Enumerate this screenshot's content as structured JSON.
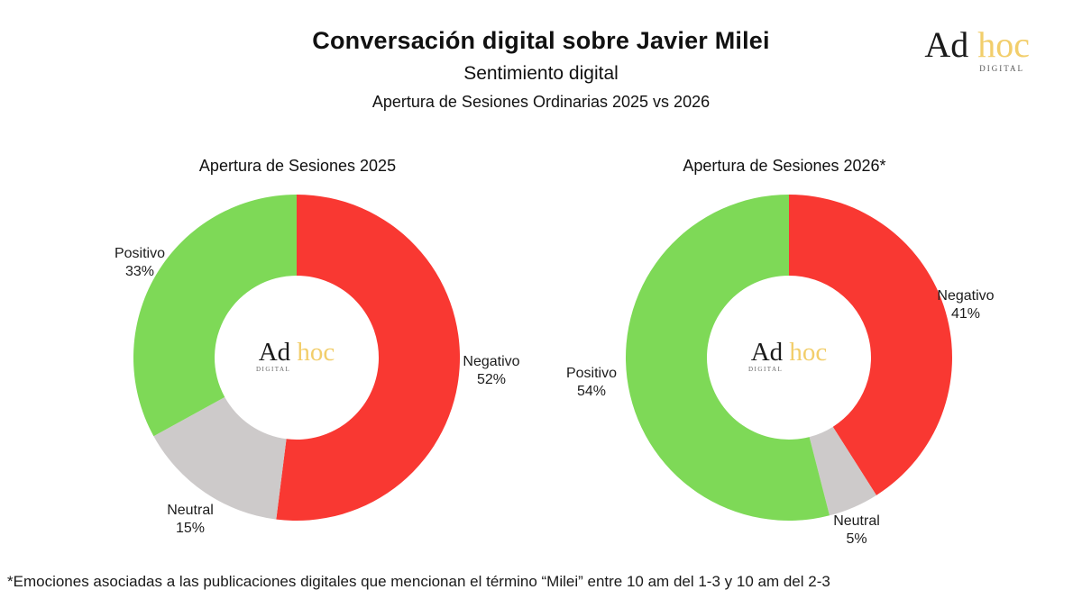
{
  "header": {
    "title": "Conversación digital sobre Javier Milei",
    "subtitle": "Sentimiento digital",
    "subsubtitle": "Apertura de Sesiones Ordinarias 2025 vs 2026"
  },
  "logo": {
    "name_primary": "Ad",
    "name_accent": "hoc",
    "tagline": "DIGITAL"
  },
  "colors": {
    "positive_green": "#7ED957",
    "negative_red": "#F93832",
    "neutral_gray": "#CDCACA",
    "logo_gold": "#F2CE6B"
  },
  "footnote": "*Emociones asociadas a las publicaciones digitales que mencionan el término “Milei” entre 10 am del 1-3 y 10 am del 2-3",
  "chart_data": [
    {
      "type": "pie",
      "donut": true,
      "title": "Apertura de Sesiones 2025",
      "start_angle_deg": 0,
      "direction": "clockwise",
      "slices": [
        {
          "label": "Negativo",
          "value": 52,
          "pct_label": "52%",
          "color": "#F93832"
        },
        {
          "label": "Neutral",
          "value": 15,
          "pct_label": "15%",
          "color": "#CDCACA"
        },
        {
          "label": "Positivo",
          "value": 33,
          "pct_label": "33%",
          "color": "#7ED957"
        }
      ]
    },
    {
      "type": "pie",
      "donut": true,
      "title": "Apertura de Sesiones 2026*",
      "start_angle_deg": 0,
      "direction": "clockwise",
      "slices": [
        {
          "label": "Negativo",
          "value": 41,
          "pct_label": "41%",
          "color": "#F93832"
        },
        {
          "label": "Neutral",
          "value": 5,
          "pct_label": "5%",
          "color": "#CDCACA"
        },
        {
          "label": "Positivo",
          "value": 54,
          "pct_label": "54%",
          "color": "#7ED957"
        }
      ]
    }
  ]
}
